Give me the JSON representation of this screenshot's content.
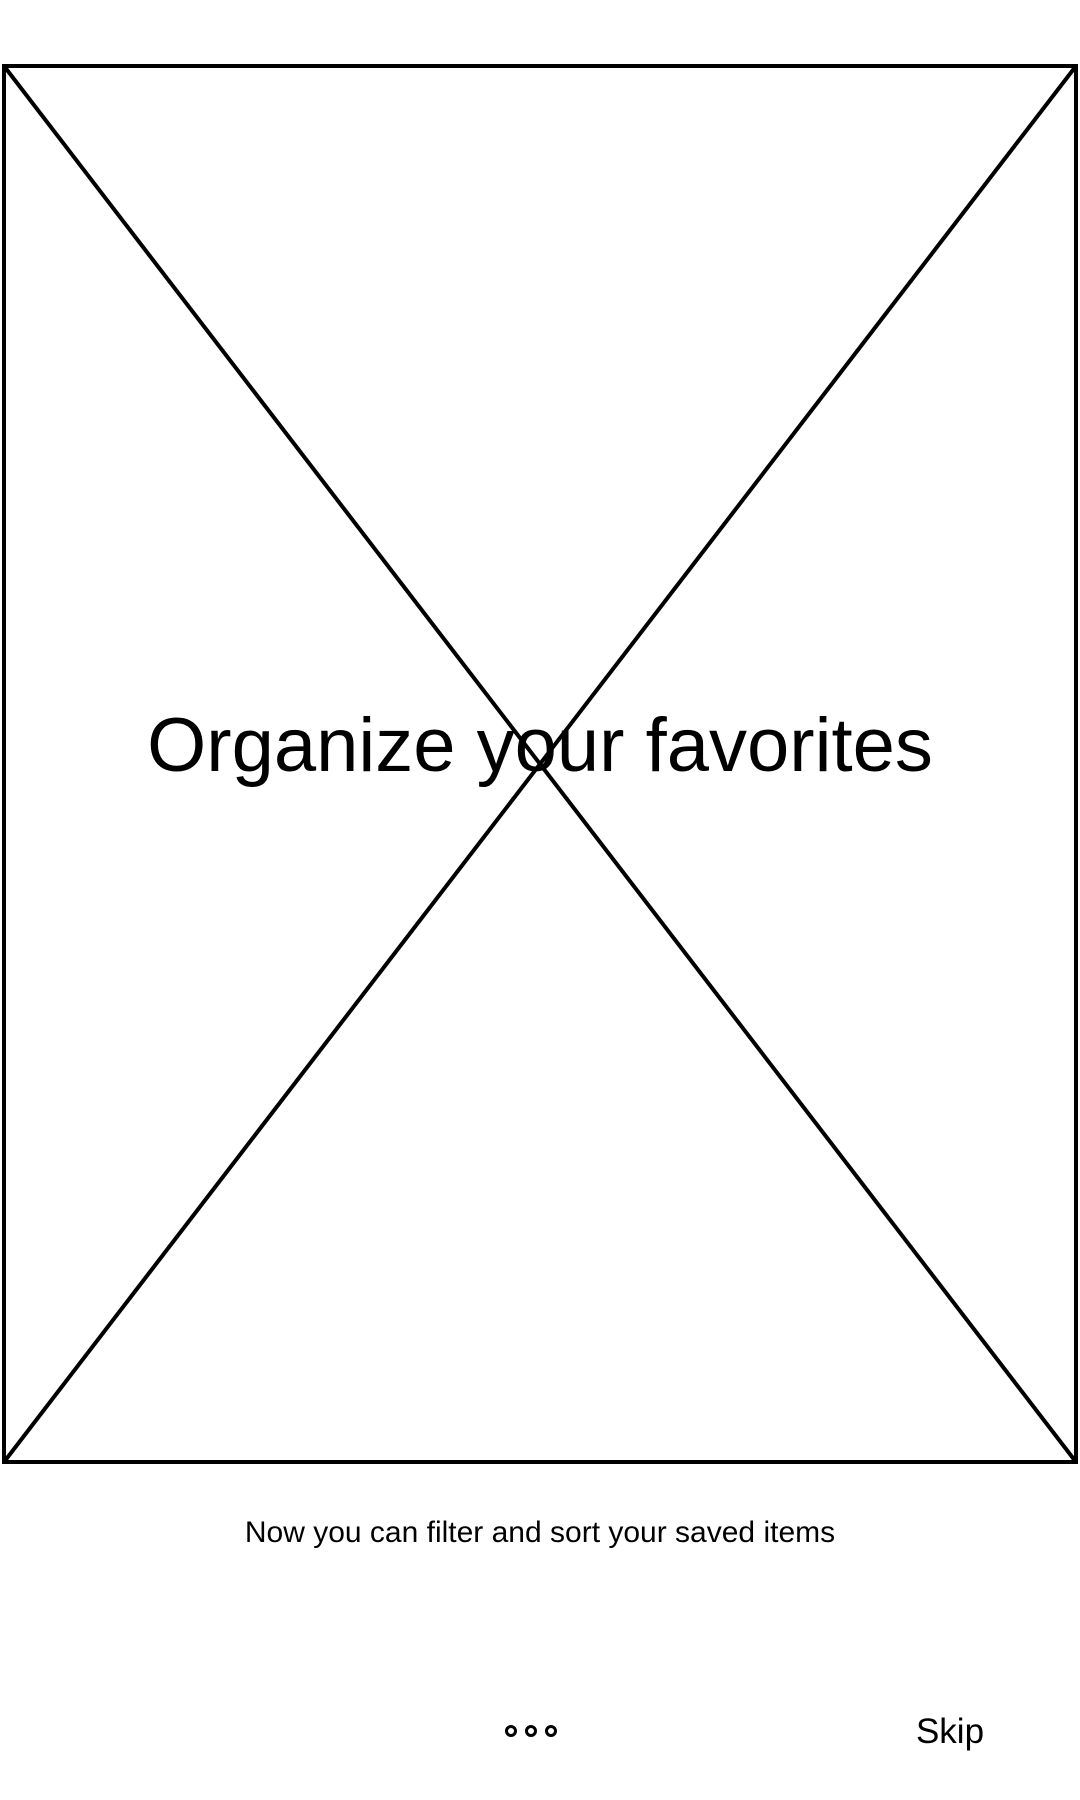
{
  "onboarding": {
    "hero_image_icon": "image-placeholder-icon",
    "title": "Organize your favorites",
    "subtitle": "Now you can filter and sort your saved items",
    "pager": {
      "total_pages": 3
    },
    "skip_label": "Skip"
  },
  "colors": {
    "stroke": "#000000",
    "background": "#ffffff"
  }
}
